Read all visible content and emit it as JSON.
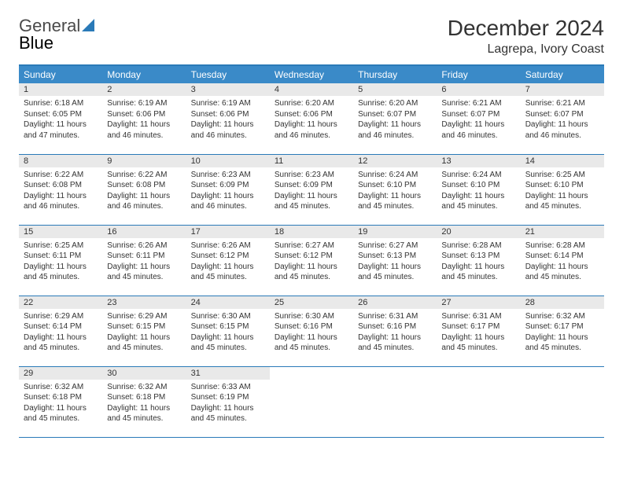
{
  "brand": {
    "part1": "General",
    "part2": "Blue"
  },
  "title": "December 2024",
  "location": "Lagrepa, Ivory Coast",
  "colors": {
    "header_bg": "#3a8ac8",
    "border": "#2a7ab8",
    "daynum_bg": "#e9e9e9",
    "text": "#333333"
  },
  "weekdays": [
    "Sunday",
    "Monday",
    "Tuesday",
    "Wednesday",
    "Thursday",
    "Friday",
    "Saturday"
  ],
  "days": [
    {
      "n": "1",
      "sr": "6:18 AM",
      "ss": "6:05 PM",
      "dl": "11 hours and 47 minutes."
    },
    {
      "n": "2",
      "sr": "6:19 AM",
      "ss": "6:06 PM",
      "dl": "11 hours and 46 minutes."
    },
    {
      "n": "3",
      "sr": "6:19 AM",
      "ss": "6:06 PM",
      "dl": "11 hours and 46 minutes."
    },
    {
      "n": "4",
      "sr": "6:20 AM",
      "ss": "6:06 PM",
      "dl": "11 hours and 46 minutes."
    },
    {
      "n": "5",
      "sr": "6:20 AM",
      "ss": "6:07 PM",
      "dl": "11 hours and 46 minutes."
    },
    {
      "n": "6",
      "sr": "6:21 AM",
      "ss": "6:07 PM",
      "dl": "11 hours and 46 minutes."
    },
    {
      "n": "7",
      "sr": "6:21 AM",
      "ss": "6:07 PM",
      "dl": "11 hours and 46 minutes."
    },
    {
      "n": "8",
      "sr": "6:22 AM",
      "ss": "6:08 PM",
      "dl": "11 hours and 46 minutes."
    },
    {
      "n": "9",
      "sr": "6:22 AM",
      "ss": "6:08 PM",
      "dl": "11 hours and 46 minutes."
    },
    {
      "n": "10",
      "sr": "6:23 AM",
      "ss": "6:09 PM",
      "dl": "11 hours and 46 minutes."
    },
    {
      "n": "11",
      "sr": "6:23 AM",
      "ss": "6:09 PM",
      "dl": "11 hours and 45 minutes."
    },
    {
      "n": "12",
      "sr": "6:24 AM",
      "ss": "6:10 PM",
      "dl": "11 hours and 45 minutes."
    },
    {
      "n": "13",
      "sr": "6:24 AM",
      "ss": "6:10 PM",
      "dl": "11 hours and 45 minutes."
    },
    {
      "n": "14",
      "sr": "6:25 AM",
      "ss": "6:10 PM",
      "dl": "11 hours and 45 minutes."
    },
    {
      "n": "15",
      "sr": "6:25 AM",
      "ss": "6:11 PM",
      "dl": "11 hours and 45 minutes."
    },
    {
      "n": "16",
      "sr": "6:26 AM",
      "ss": "6:11 PM",
      "dl": "11 hours and 45 minutes."
    },
    {
      "n": "17",
      "sr": "6:26 AM",
      "ss": "6:12 PM",
      "dl": "11 hours and 45 minutes."
    },
    {
      "n": "18",
      "sr": "6:27 AM",
      "ss": "6:12 PM",
      "dl": "11 hours and 45 minutes."
    },
    {
      "n": "19",
      "sr": "6:27 AM",
      "ss": "6:13 PM",
      "dl": "11 hours and 45 minutes."
    },
    {
      "n": "20",
      "sr": "6:28 AM",
      "ss": "6:13 PM",
      "dl": "11 hours and 45 minutes."
    },
    {
      "n": "21",
      "sr": "6:28 AM",
      "ss": "6:14 PM",
      "dl": "11 hours and 45 minutes."
    },
    {
      "n": "22",
      "sr": "6:29 AM",
      "ss": "6:14 PM",
      "dl": "11 hours and 45 minutes."
    },
    {
      "n": "23",
      "sr": "6:29 AM",
      "ss": "6:15 PM",
      "dl": "11 hours and 45 minutes."
    },
    {
      "n": "24",
      "sr": "6:30 AM",
      "ss": "6:15 PM",
      "dl": "11 hours and 45 minutes."
    },
    {
      "n": "25",
      "sr": "6:30 AM",
      "ss": "6:16 PM",
      "dl": "11 hours and 45 minutes."
    },
    {
      "n": "26",
      "sr": "6:31 AM",
      "ss": "6:16 PM",
      "dl": "11 hours and 45 minutes."
    },
    {
      "n": "27",
      "sr": "6:31 AM",
      "ss": "6:17 PM",
      "dl": "11 hours and 45 minutes."
    },
    {
      "n": "28",
      "sr": "6:32 AM",
      "ss": "6:17 PM",
      "dl": "11 hours and 45 minutes."
    },
    {
      "n": "29",
      "sr": "6:32 AM",
      "ss": "6:18 PM",
      "dl": "11 hours and 45 minutes."
    },
    {
      "n": "30",
      "sr": "6:32 AM",
      "ss": "6:18 PM",
      "dl": "11 hours and 45 minutes."
    },
    {
      "n": "31",
      "sr": "6:33 AM",
      "ss": "6:19 PM",
      "dl": "11 hours and 45 minutes."
    }
  ],
  "labels": {
    "sunrise": "Sunrise:",
    "sunset": "Sunset:",
    "daylight": "Daylight:"
  }
}
